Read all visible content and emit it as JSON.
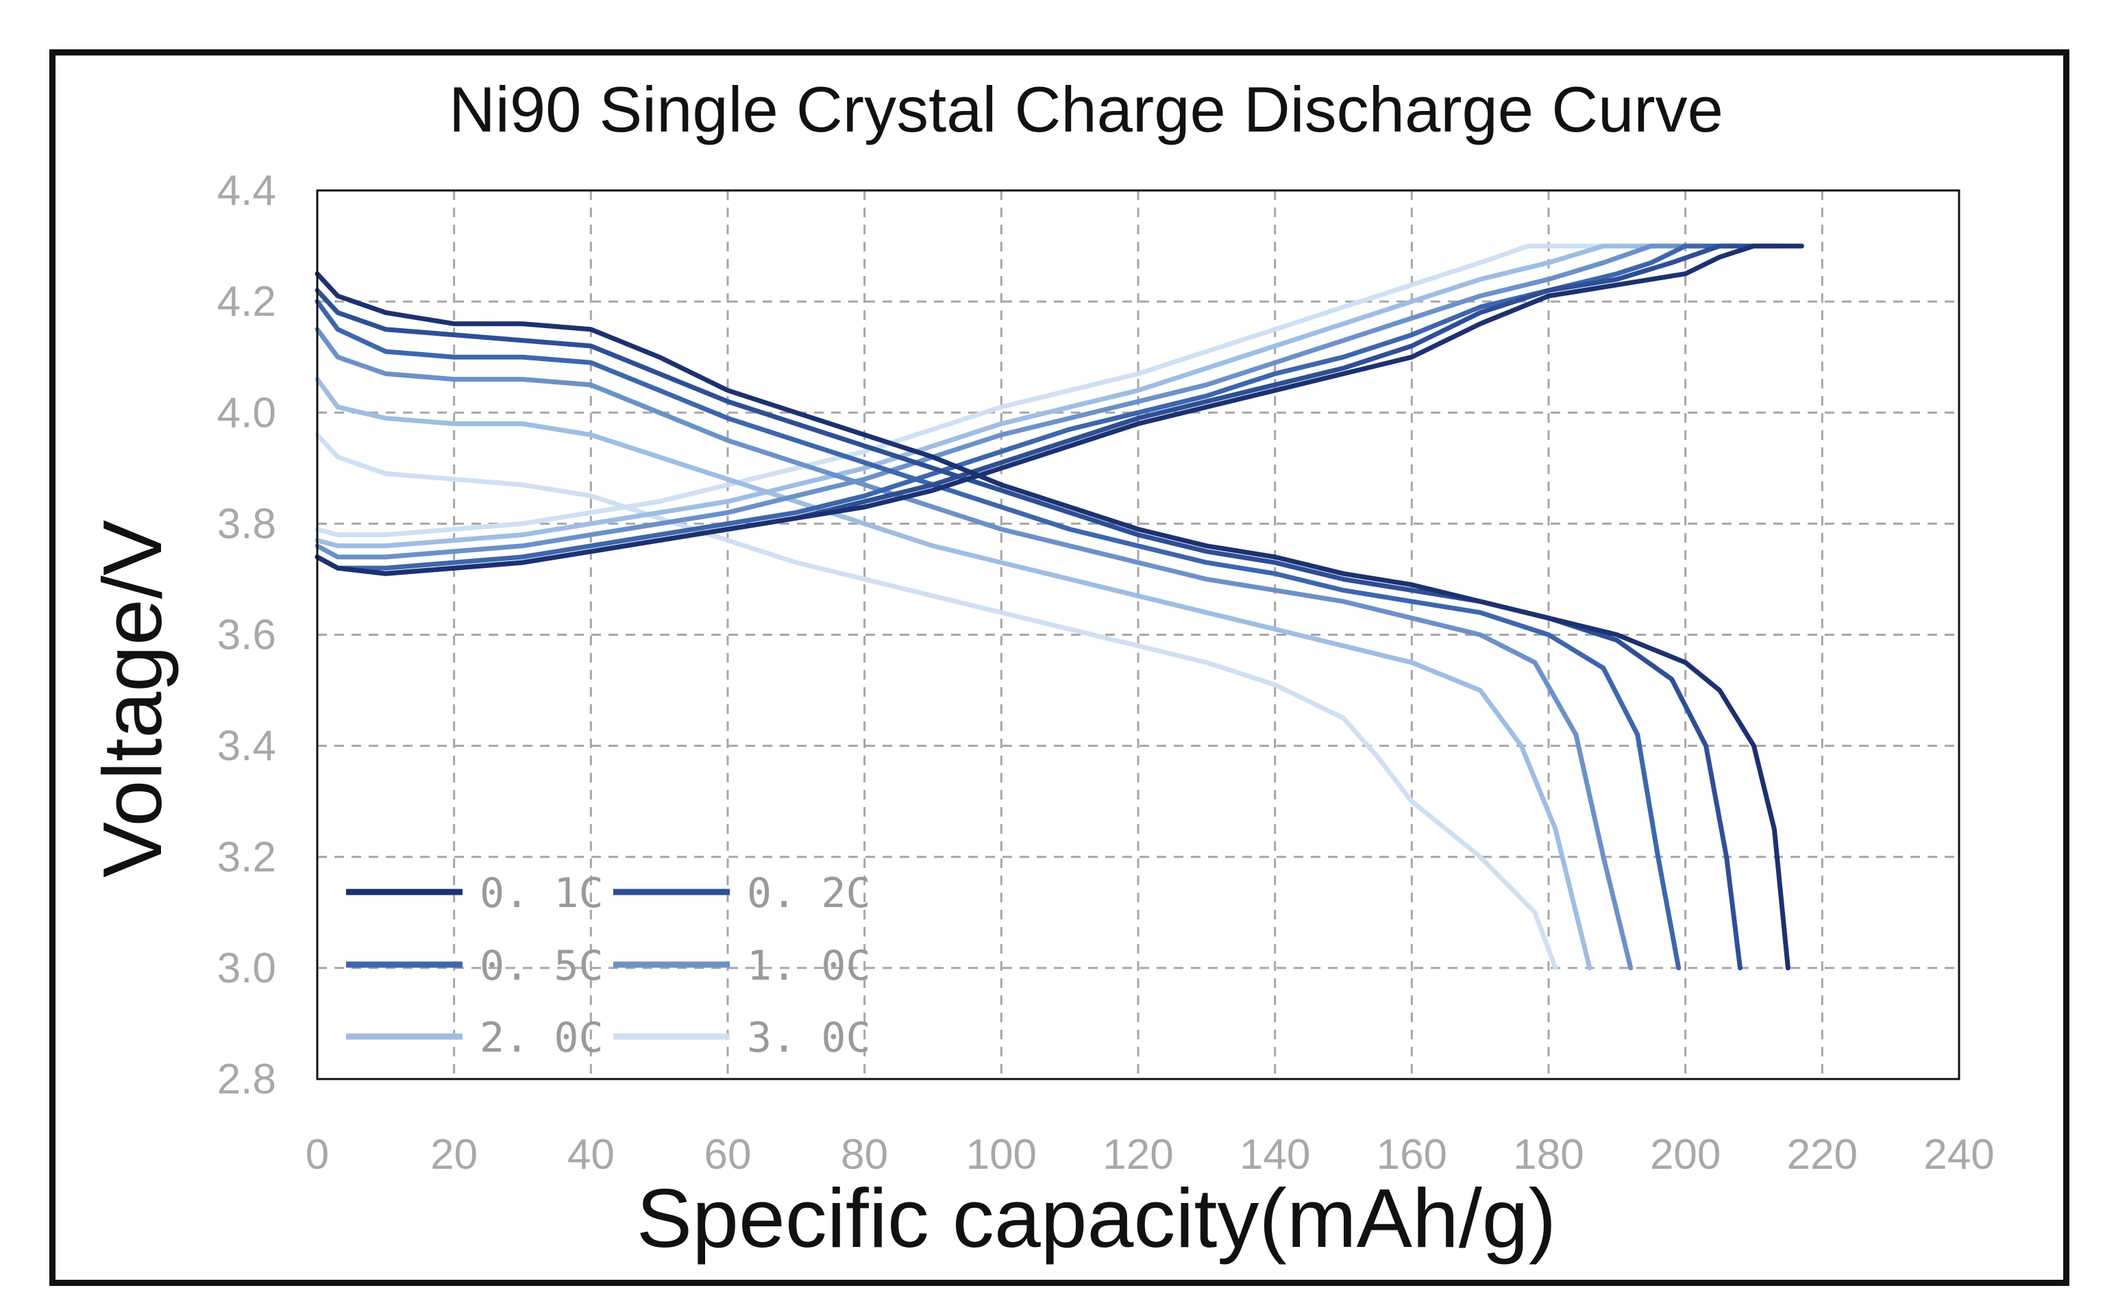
{
  "chart_data": {
    "type": "line",
    "title": "Ni90 Single Crystal Charge Discharge Curve",
    "xlabel": "Specific capacity(mAh/g)",
    "ylabel": "Voltage/V",
    "xlim": [
      0,
      240
    ],
    "ylim": [
      2.8,
      4.4
    ],
    "xticks": [
      "0",
      "20",
      "40",
      "60",
      "80",
      "100",
      "120",
      "140",
      "160",
      "180",
      "200",
      "220",
      "240"
    ],
    "yticks": [
      "2.8",
      "3.0",
      "3.2",
      "3.4",
      "3.6",
      "3.8",
      "4.0",
      "4.2",
      "4.4"
    ],
    "grid": true,
    "legend_position": "bottom-left",
    "series": [
      {
        "name": "0. 1C",
        "color": "#1c3170",
        "charge": [
          [
            0,
            3.74
          ],
          [
            3,
            3.72
          ],
          [
            10,
            3.71
          ],
          [
            20,
            3.72
          ],
          [
            30,
            3.73
          ],
          [
            40,
            3.75
          ],
          [
            50,
            3.77
          ],
          [
            60,
            3.79
          ],
          [
            70,
            3.81
          ],
          [
            80,
            3.83
          ],
          [
            90,
            3.86
          ],
          [
            100,
            3.9
          ],
          [
            110,
            3.94
          ],
          [
            120,
            3.98
          ],
          [
            130,
            4.01
          ],
          [
            140,
            4.04
          ],
          [
            150,
            4.07
          ],
          [
            160,
            4.1
          ],
          [
            170,
            4.16
          ],
          [
            180,
            4.21
          ],
          [
            190,
            4.23
          ],
          [
            200,
            4.25
          ],
          [
            205,
            4.28
          ],
          [
            210,
            4.3
          ],
          [
            217,
            4.3
          ]
        ],
        "discharge": [
          [
            0,
            4.25
          ],
          [
            3,
            4.21
          ],
          [
            10,
            4.18
          ],
          [
            20,
            4.16
          ],
          [
            30,
            4.16
          ],
          [
            40,
            4.15
          ],
          [
            50,
            4.1
          ],
          [
            60,
            4.04
          ],
          [
            70,
            4.0
          ],
          [
            80,
            3.96
          ],
          [
            90,
            3.92
          ],
          [
            100,
            3.87
          ],
          [
            110,
            3.83
          ],
          [
            120,
            3.79
          ],
          [
            130,
            3.76
          ],
          [
            140,
            3.74
          ],
          [
            150,
            3.71
          ],
          [
            160,
            3.69
          ],
          [
            170,
            3.66
          ],
          [
            180,
            3.63
          ],
          [
            190,
            3.6
          ],
          [
            200,
            3.55
          ],
          [
            205,
            3.5
          ],
          [
            210,
            3.4
          ],
          [
            213,
            3.25
          ],
          [
            215,
            3.0
          ]
        ]
      },
      {
        "name": "0. 2C",
        "color": "#2e4f96",
        "charge": [
          [
            0,
            3.74
          ],
          [
            3,
            3.72
          ],
          [
            10,
            3.71
          ],
          [
            20,
            3.72
          ],
          [
            30,
            3.73
          ],
          [
            40,
            3.75
          ],
          [
            50,
            3.77
          ],
          [
            60,
            3.79
          ],
          [
            70,
            3.81
          ],
          [
            80,
            3.84
          ],
          [
            90,
            3.87
          ],
          [
            100,
            3.91
          ],
          [
            110,
            3.95
          ],
          [
            120,
            3.99
          ],
          [
            130,
            4.02
          ],
          [
            140,
            4.05
          ],
          [
            150,
            4.08
          ],
          [
            160,
            4.12
          ],
          [
            170,
            4.18
          ],
          [
            180,
            4.22
          ],
          [
            190,
            4.24
          ],
          [
            198,
            4.27
          ],
          [
            205,
            4.3
          ],
          [
            214,
            4.3
          ]
        ],
        "discharge": [
          [
            0,
            4.22
          ],
          [
            3,
            4.18
          ],
          [
            10,
            4.15
          ],
          [
            20,
            4.14
          ],
          [
            30,
            4.13
          ],
          [
            40,
            4.12
          ],
          [
            50,
            4.07
          ],
          [
            60,
            4.02
          ],
          [
            70,
            3.98
          ],
          [
            80,
            3.94
          ],
          [
            90,
            3.9
          ],
          [
            100,
            3.86
          ],
          [
            110,
            3.82
          ],
          [
            120,
            3.78
          ],
          [
            130,
            3.75
          ],
          [
            140,
            3.73
          ],
          [
            150,
            3.7
          ],
          [
            160,
            3.68
          ],
          [
            170,
            3.66
          ],
          [
            180,
            3.63
          ],
          [
            190,
            3.59
          ],
          [
            198,
            3.52
          ],
          [
            203,
            3.4
          ],
          [
            206,
            3.2
          ],
          [
            208,
            3.0
          ]
        ]
      },
      {
        "name": "0. 5C",
        "color": "#3d66ad",
        "charge": [
          [
            0,
            3.74
          ],
          [
            3,
            3.72
          ],
          [
            10,
            3.72
          ],
          [
            20,
            3.73
          ],
          [
            30,
            3.74
          ],
          [
            40,
            3.76
          ],
          [
            50,
            3.78
          ],
          [
            60,
            3.8
          ],
          [
            70,
            3.82
          ],
          [
            80,
            3.85
          ],
          [
            90,
            3.89
          ],
          [
            100,
            3.93
          ],
          [
            110,
            3.97
          ],
          [
            120,
            4.0
          ],
          [
            130,
            4.03
          ],
          [
            140,
            4.07
          ],
          [
            150,
            4.1
          ],
          [
            160,
            4.14
          ],
          [
            170,
            4.19
          ],
          [
            180,
            4.22
          ],
          [
            190,
            4.25
          ],
          [
            195,
            4.27
          ],
          [
            200,
            4.3
          ],
          [
            208,
            4.3
          ]
        ],
        "discharge": [
          [
            0,
            4.2
          ],
          [
            3,
            4.15
          ],
          [
            10,
            4.11
          ],
          [
            20,
            4.1
          ],
          [
            30,
            4.1
          ],
          [
            40,
            4.09
          ],
          [
            50,
            4.04
          ],
          [
            60,
            3.99
          ],
          [
            70,
            3.95
          ],
          [
            80,
            3.91
          ],
          [
            90,
            3.87
          ],
          [
            100,
            3.83
          ],
          [
            110,
            3.79
          ],
          [
            120,
            3.76
          ],
          [
            130,
            3.73
          ],
          [
            140,
            3.71
          ],
          [
            150,
            3.68
          ],
          [
            160,
            3.66
          ],
          [
            170,
            3.64
          ],
          [
            180,
            3.6
          ],
          [
            188,
            3.54
          ],
          [
            193,
            3.42
          ],
          [
            196,
            3.2
          ],
          [
            199,
            3.0
          ]
        ]
      },
      {
        "name": "1. 0C",
        "color": "#6b91c8",
        "charge": [
          [
            0,
            3.76
          ],
          [
            3,
            3.74
          ],
          [
            10,
            3.74
          ],
          [
            20,
            3.75
          ],
          [
            30,
            3.76
          ],
          [
            40,
            3.78
          ],
          [
            50,
            3.8
          ],
          [
            60,
            3.82
          ],
          [
            70,
            3.85
          ],
          [
            80,
            3.88
          ],
          [
            90,
            3.92
          ],
          [
            100,
            3.96
          ],
          [
            110,
            3.99
          ],
          [
            120,
            4.02
          ],
          [
            130,
            4.05
          ],
          [
            140,
            4.09
          ],
          [
            150,
            4.13
          ],
          [
            160,
            4.17
          ],
          [
            170,
            4.21
          ],
          [
            180,
            4.24
          ],
          [
            188,
            4.27
          ],
          [
            195,
            4.3
          ],
          [
            202,
            4.3
          ]
        ],
        "discharge": [
          [
            0,
            4.15
          ],
          [
            3,
            4.1
          ],
          [
            10,
            4.07
          ],
          [
            20,
            4.06
          ],
          [
            30,
            4.06
          ],
          [
            40,
            4.05
          ],
          [
            50,
            4.0
          ],
          [
            60,
            3.95
          ],
          [
            70,
            3.91
          ],
          [
            80,
            3.87
          ],
          [
            90,
            3.83
          ],
          [
            100,
            3.79
          ],
          [
            110,
            3.76
          ],
          [
            120,
            3.73
          ],
          [
            130,
            3.7
          ],
          [
            140,
            3.68
          ],
          [
            150,
            3.66
          ],
          [
            160,
            3.63
          ],
          [
            170,
            3.6
          ],
          [
            178,
            3.55
          ],
          [
            184,
            3.42
          ],
          [
            188,
            3.2
          ],
          [
            192,
            3.0
          ]
        ]
      },
      {
        "name": "2. 0C",
        "color": "#9fbde3",
        "charge": [
          [
            0,
            3.77
          ],
          [
            3,
            3.76
          ],
          [
            10,
            3.76
          ],
          [
            20,
            3.77
          ],
          [
            30,
            3.78
          ],
          [
            40,
            3.8
          ],
          [
            50,
            3.82
          ],
          [
            60,
            3.84
          ],
          [
            70,
            3.87
          ],
          [
            80,
            3.9
          ],
          [
            90,
            3.94
          ],
          [
            100,
            3.98
          ],
          [
            110,
            4.01
          ],
          [
            120,
            4.04
          ],
          [
            130,
            4.08
          ],
          [
            140,
            4.12
          ],
          [
            150,
            4.16
          ],
          [
            160,
            4.2
          ],
          [
            170,
            4.24
          ],
          [
            180,
            4.27
          ],
          [
            188,
            4.3
          ],
          [
            196,
            4.3
          ]
        ],
        "discharge": [
          [
            0,
            4.06
          ],
          [
            3,
            4.01
          ],
          [
            10,
            3.99
          ],
          [
            20,
            3.98
          ],
          [
            30,
            3.98
          ],
          [
            40,
            3.96
          ],
          [
            50,
            3.92
          ],
          [
            60,
            3.88
          ],
          [
            70,
            3.84
          ],
          [
            80,
            3.8
          ],
          [
            90,
            3.76
          ],
          [
            100,
            3.73
          ],
          [
            110,
            3.7
          ],
          [
            120,
            3.67
          ],
          [
            130,
            3.64
          ],
          [
            140,
            3.61
          ],
          [
            150,
            3.58
          ],
          [
            160,
            3.55
          ],
          [
            170,
            3.5
          ],
          [
            176,
            3.4
          ],
          [
            181,
            3.25
          ],
          [
            184,
            3.1
          ],
          [
            186,
            3.0
          ]
        ]
      },
      {
        "name": "3. 0C",
        "color": "#cfe0f3",
        "charge": [
          [
            0,
            3.79
          ],
          [
            3,
            3.78
          ],
          [
            10,
            3.78
          ],
          [
            20,
            3.79
          ],
          [
            30,
            3.8
          ],
          [
            40,
            3.82
          ],
          [
            50,
            3.84
          ],
          [
            60,
            3.87
          ],
          [
            70,
            3.9
          ],
          [
            80,
            3.93
          ],
          [
            90,
            3.97
          ],
          [
            100,
            4.01
          ],
          [
            110,
            4.04
          ],
          [
            120,
            4.07
          ],
          [
            130,
            4.11
          ],
          [
            140,
            4.15
          ],
          [
            150,
            4.19
          ],
          [
            160,
            4.23
          ],
          [
            170,
            4.27
          ],
          [
            177,
            4.3
          ],
          [
            188,
            4.3
          ]
        ],
        "discharge": [
          [
            0,
            3.96
          ],
          [
            3,
            3.92
          ],
          [
            10,
            3.89
          ],
          [
            20,
            3.88
          ],
          [
            30,
            3.87
          ],
          [
            40,
            3.85
          ],
          [
            50,
            3.81
          ],
          [
            60,
            3.77
          ],
          [
            70,
            3.73
          ],
          [
            80,
            3.7
          ],
          [
            90,
            3.67
          ],
          [
            100,
            3.64
          ],
          [
            110,
            3.61
          ],
          [
            120,
            3.58
          ],
          [
            130,
            3.55
          ],
          [
            140,
            3.51
          ],
          [
            150,
            3.45
          ],
          [
            155,
            3.38
          ],
          [
            160,
            3.3
          ],
          [
            165,
            3.25
          ],
          [
            170,
            3.2
          ],
          [
            174,
            3.15
          ],
          [
            178,
            3.1
          ],
          [
            181,
            3.0
          ]
        ]
      }
    ]
  }
}
